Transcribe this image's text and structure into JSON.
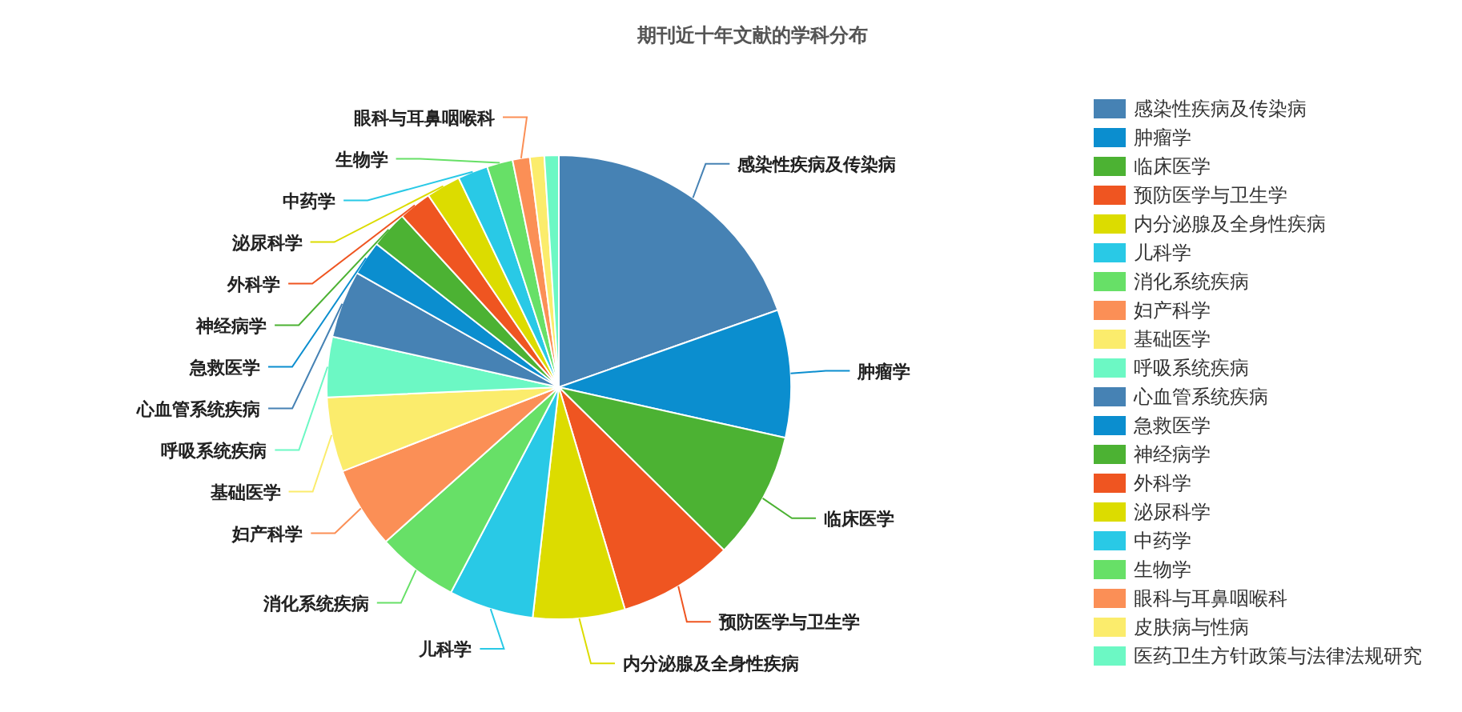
{
  "chart_data": {
    "type": "pie",
    "title": "期刊近十年文献的学科分布",
    "categories": [
      "感染性疾病及传染病",
      "肿瘤学",
      "临床医学",
      "预防医学与卫生学",
      "内分泌腺及全身性疾病",
      "儿科学",
      "消化系统疾病",
      "妇产科学",
      "基础医学",
      "呼吸系统疾病",
      "心血管系统疾病",
      "急救医学",
      "神经病学",
      "外科学",
      "泌尿科学",
      "中药学",
      "生物学",
      "眼科与耳鼻咽喉科",
      "皮肤病与性病",
      "医药卫生方针政策与法律法规研究"
    ],
    "values": [
      19.6,
      8.9,
      8.9,
      8.0,
      6.4,
      5.9,
      5.7,
      5.7,
      5.2,
      4.2,
      4.7,
      2.4,
      2.6,
      2.3,
      2.4,
      2.1,
      1.8,
      1.2,
      1.0,
      1.0
    ],
    "colors": [
      "#4682b4",
      "#0b8ecf",
      "#4cb233",
      "#ef5521",
      "#dcdc00",
      "#29c9e6",
      "#67e067",
      "#fb8f56",
      "#fbec6c",
      "#6cf8c4",
      "#4682b4",
      "#0b8ecf",
      "#4cb233",
      "#ef5521",
      "#dcdc00",
      "#29c9e6",
      "#67e067",
      "#fb8f56",
      "#fbec6c",
      "#6cf8c4"
    ],
    "annotations": [
      "感染性疾病及传染病",
      "肿瘤学",
      "临床医学",
      "预防医学与卫生学",
      "内分泌腺及全身性疾病",
      "儿科学",
      "消化系统疾病",
      "妇产科学",
      "基础医学",
      "呼吸系统疾病",
      "心血管系统疾病",
      "急救医学",
      "神经病学",
      "外科学",
      "泌尿科学",
      "中药学",
      "生物学",
      "眼科与耳鼻咽喉科"
    ],
    "legend": "right"
  }
}
